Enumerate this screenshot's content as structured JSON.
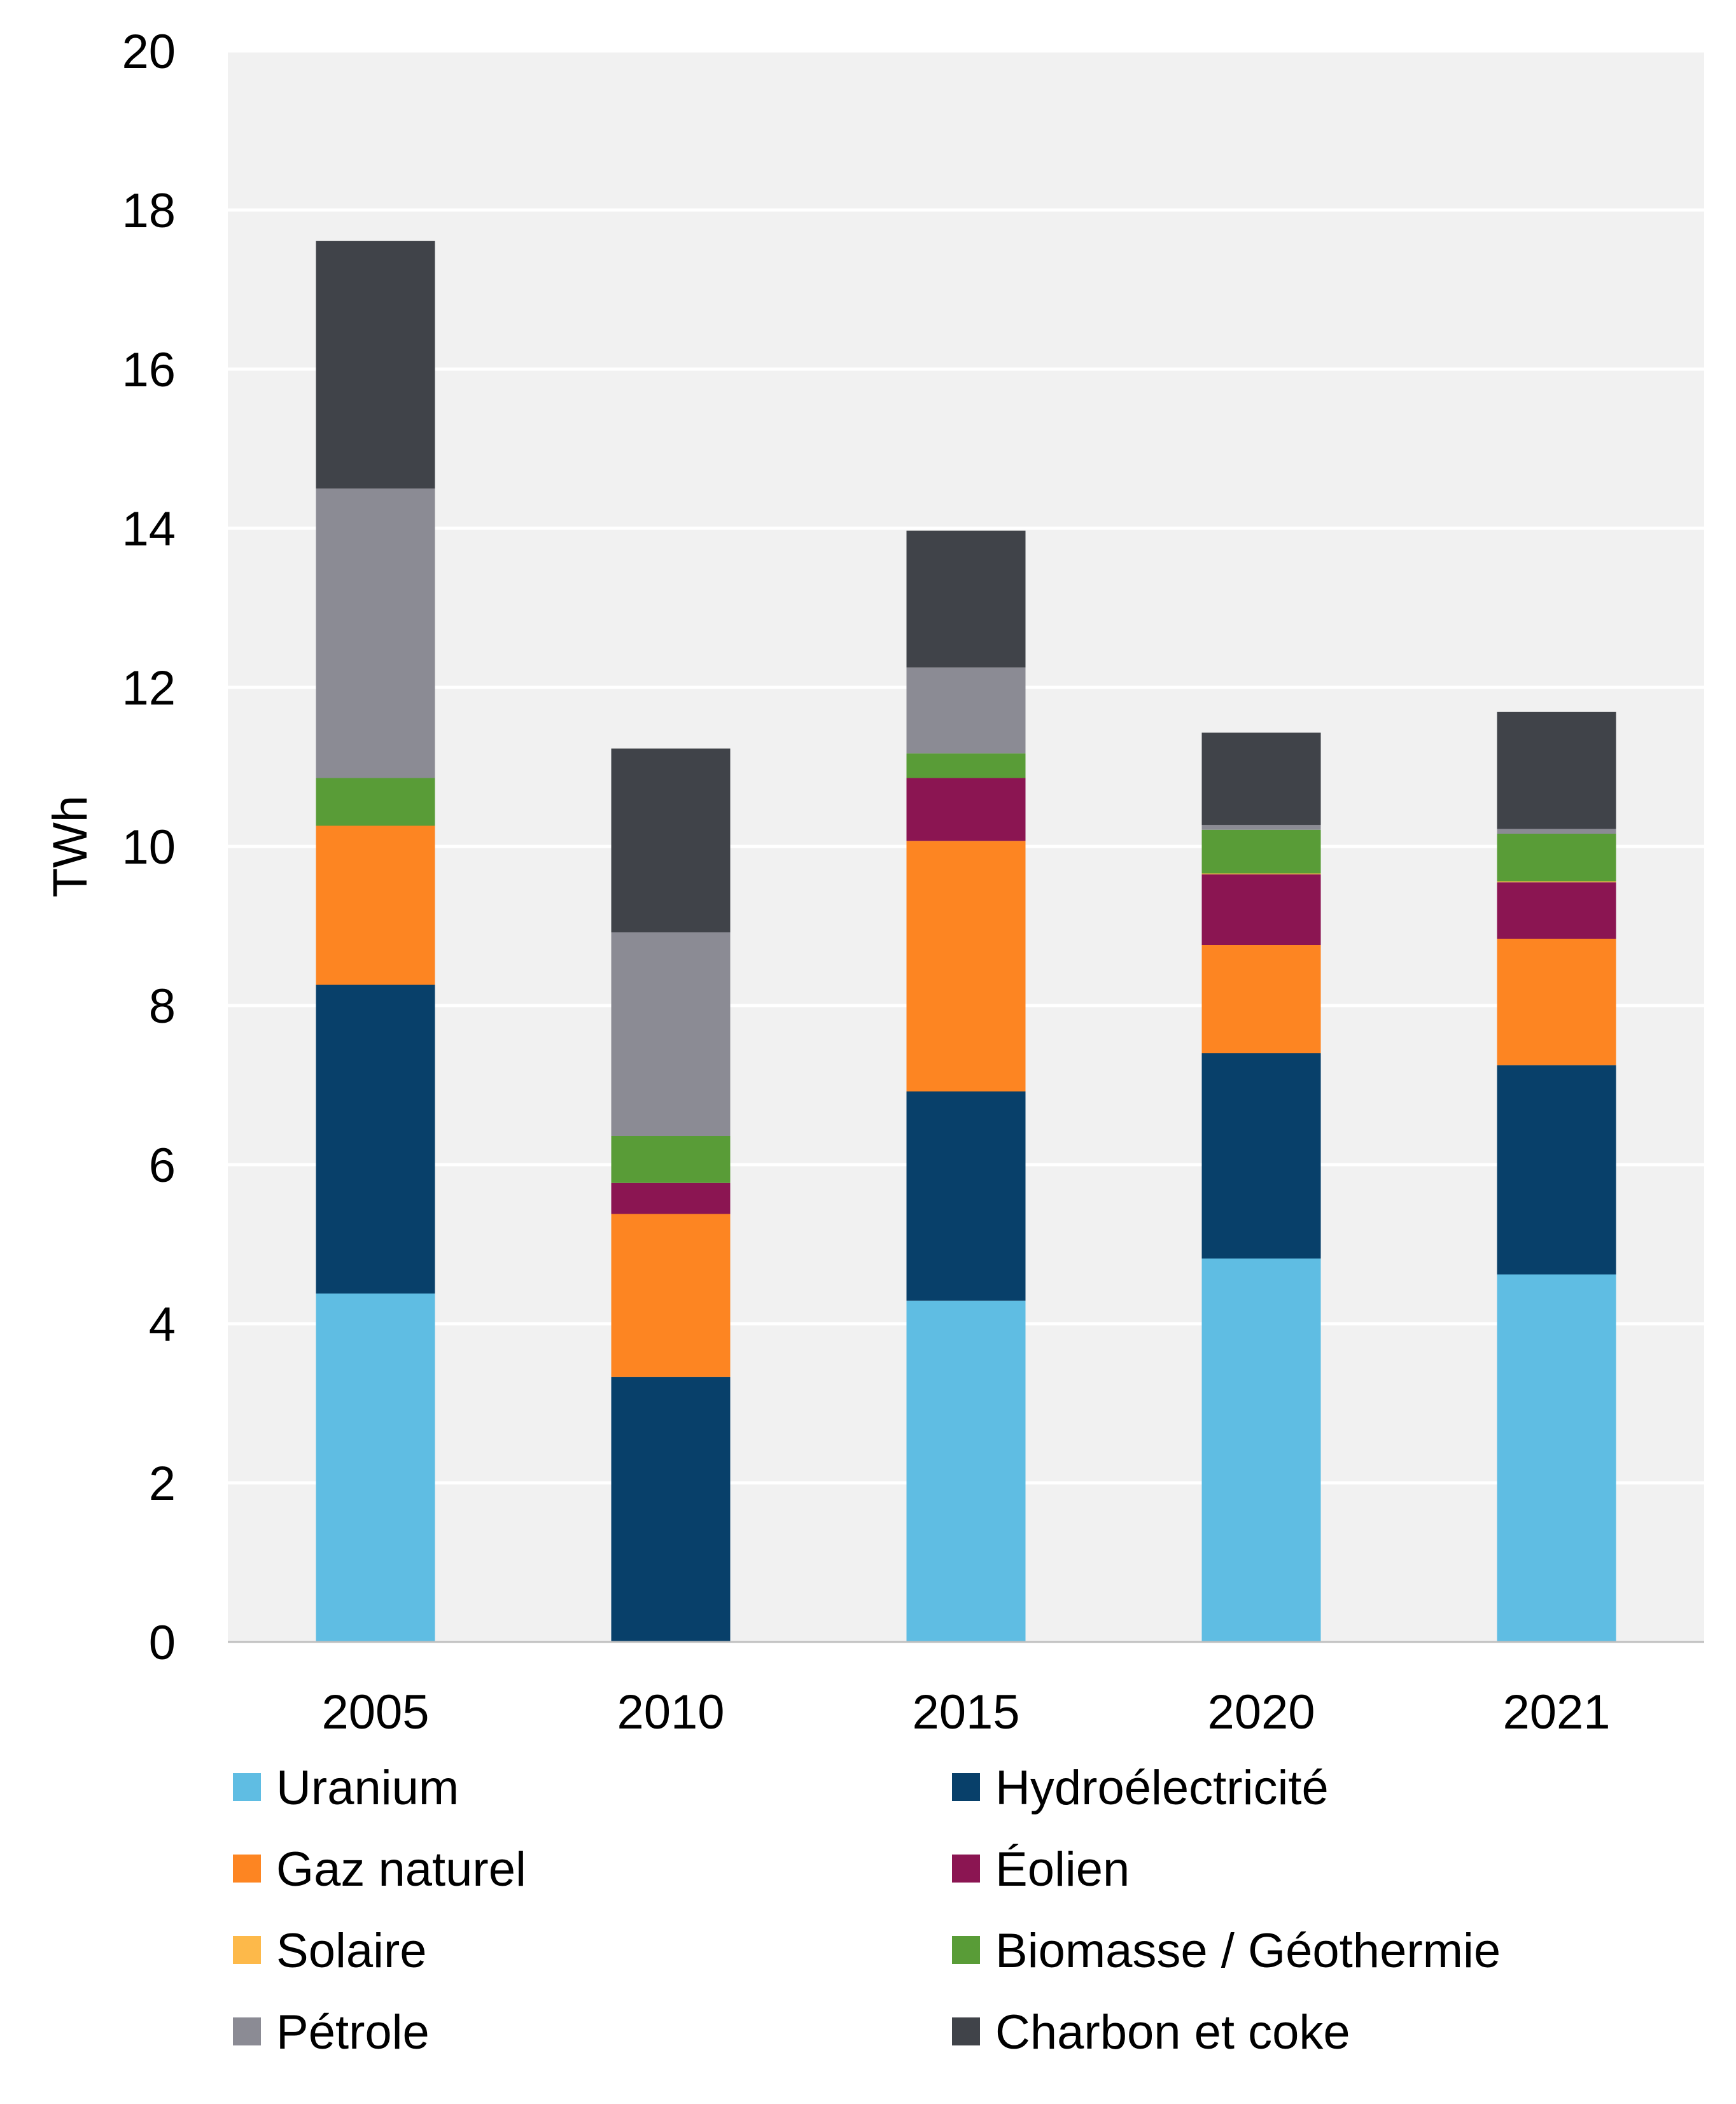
{
  "chart_data": {
    "type": "bar",
    "stacked": true,
    "title": "",
    "xlabel": "",
    "ylabel": "TWh",
    "ylim": [
      0,
      20
    ],
    "yticks": [
      "0",
      "2",
      "4",
      "6",
      "8",
      "10",
      "12",
      "14",
      "16",
      "18",
      "20"
    ],
    "grid": true,
    "legend_position": "bottom",
    "categories": [
      "2005",
      "2010",
      "2015",
      "2020",
      "2021"
    ],
    "series": [
      {
        "name": "Uranium",
        "color": "#5FBDE3",
        "values": [
          4.38,
          0.0,
          4.29,
          4.82,
          4.62
        ]
      },
      {
        "name": "Hydroélectricité",
        "color": "#08406A",
        "values": [
          3.88,
          3.33,
          2.63,
          2.58,
          2.63
        ]
      },
      {
        "name": "Gaz naturel",
        "color": "#FD8522",
        "values": [
          2.0,
          2.05,
          3.15,
          1.36,
          1.59
        ]
      },
      {
        "name": "Éolien",
        "color": "#8B1552",
        "values": [
          0.0,
          0.39,
          0.79,
          0.89,
          0.71
        ]
      },
      {
        "name": "Solaire",
        "color": "#FDB94A",
        "values": [
          0.0,
          0.0,
          0.0,
          0.01,
          0.01
        ]
      },
      {
        "name": "Biomasse / Géothermie",
        "color": "#599C37",
        "values": [
          0.6,
          0.59,
          0.31,
          0.55,
          0.6
        ]
      },
      {
        "name": "Pétrole",
        "color": "#8B8B94",
        "values": [
          3.64,
          2.56,
          1.08,
          0.06,
          0.06
        ]
      },
      {
        "name": "Charbon et coke",
        "color": "#404349",
        "values": [
          3.11,
          2.31,
          1.72,
          1.16,
          1.47
        ]
      }
    ]
  }
}
